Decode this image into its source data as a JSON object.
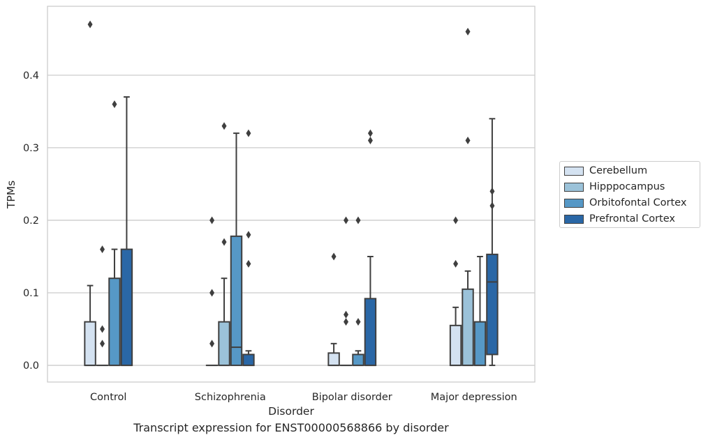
{
  "chart_data": {
    "type": "box",
    "title": "",
    "caption": "Transcript expression for ENST00000568866 by disorder",
    "xlabel": "Disorder",
    "ylabel": "TPMs",
    "ylim": [
      -0.023,
      0.495
    ],
    "yticks": [
      0.0,
      0.1,
      0.2,
      0.3,
      0.4
    ],
    "ytick_labels": [
      "0.0",
      "0.1",
      "0.2",
      "0.3",
      "0.4"
    ],
    "grid": "horizontal",
    "legend_placement": "right-center",
    "categories": [
      "Control",
      "Schizophrenia",
      "Bipolar disorder",
      "Major depression"
    ],
    "series": [
      {
        "name": "Cerebellum",
        "color": "#d4e2f1",
        "boxes": [
          {
            "q1": 0.0,
            "median": 0.0,
            "q3": 0.06,
            "whisker_low": 0.0,
            "whisker_high": 0.11,
            "outliers": [
              0.47
            ]
          },
          {
            "q1": 0.0,
            "median": 0.0,
            "q3": 0.0,
            "whisker_low": 0.0,
            "whisker_high": 0.0,
            "outliers": [
              0.03,
              0.1,
              0.2
            ]
          },
          {
            "q1": 0.0,
            "median": 0.0,
            "q3": 0.017,
            "whisker_low": 0.0,
            "whisker_high": 0.03,
            "outliers": [
              0.15
            ]
          },
          {
            "q1": 0.0,
            "median": 0.0,
            "q3": 0.055,
            "whisker_low": 0.0,
            "whisker_high": 0.08,
            "outliers": [
              0.14,
              0.2
            ]
          }
        ]
      },
      {
        "name": "Hipppocampus",
        "color": "#9bc2d9",
        "boxes": [
          {
            "q1": 0.0,
            "median": 0.0,
            "q3": 0.0,
            "whisker_low": 0.0,
            "whisker_high": 0.0,
            "outliers": [
              0.03,
              0.05,
              0.16
            ]
          },
          {
            "q1": 0.0,
            "median": 0.0,
            "q3": 0.06,
            "whisker_low": 0.0,
            "whisker_high": 0.12,
            "outliers": [
              0.17,
              0.33
            ]
          },
          {
            "q1": 0.0,
            "median": 0.0,
            "q3": 0.0,
            "whisker_low": 0.0,
            "whisker_high": 0.0,
            "outliers": [
              0.06,
              0.07,
              0.2
            ]
          },
          {
            "q1": 0.0,
            "median": 0.0,
            "q3": 0.105,
            "whisker_low": 0.0,
            "whisker_high": 0.13,
            "outliers": [
              0.31,
              0.46
            ]
          }
        ]
      },
      {
        "name": "Orbitofontal Cortex",
        "color": "#5698c6",
        "boxes": [
          {
            "q1": 0.0,
            "median": 0.0,
            "q3": 0.12,
            "whisker_low": 0.0,
            "whisker_high": 0.16,
            "outliers": [
              0.36
            ]
          },
          {
            "q1": 0.0,
            "median": 0.025,
            "q3": 0.178,
            "whisker_low": 0.0,
            "whisker_high": 0.32,
            "outliers": []
          },
          {
            "q1": 0.0,
            "median": 0.0,
            "q3": 0.015,
            "whisker_low": 0.0,
            "whisker_high": 0.02,
            "outliers": [
              0.06,
              0.2
            ]
          },
          {
            "q1": 0.0,
            "median": 0.0,
            "q3": 0.06,
            "whisker_low": 0.0,
            "whisker_high": 0.15,
            "outliers": []
          }
        ]
      },
      {
        "name": "Prefrontal Cortex",
        "color": "#2a67a6",
        "boxes": [
          {
            "q1": 0.0,
            "median": 0.0,
            "q3": 0.16,
            "whisker_low": 0.0,
            "whisker_high": 0.37,
            "outliers": []
          },
          {
            "q1": 0.0,
            "median": 0.0,
            "q3": 0.015,
            "whisker_low": 0.0,
            "whisker_high": 0.02,
            "outliers": [
              0.14,
              0.18,
              0.32
            ]
          },
          {
            "q1": 0.0,
            "median": 0.0,
            "q3": 0.092,
            "whisker_low": 0.0,
            "whisker_high": 0.15,
            "outliers": [
              0.31,
              0.32
            ]
          },
          {
            "q1": 0.015,
            "median": 0.115,
            "q3": 0.153,
            "whisker_low": 0.0,
            "whisker_high": 0.34,
            "outliers": [
              0.22,
              0.24
            ]
          }
        ]
      }
    ]
  }
}
